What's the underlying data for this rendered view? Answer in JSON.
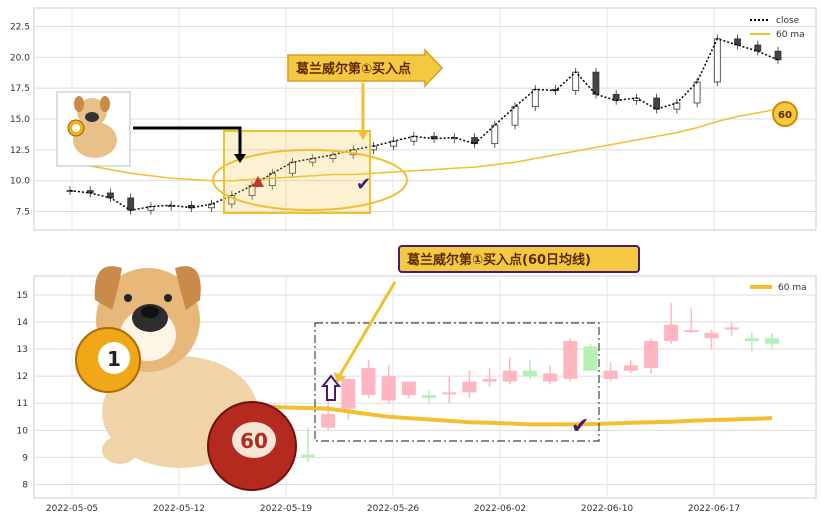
{
  "chart_data": [
    {
      "type": "candlestick",
      "panel": "top",
      "x_dates": [
        "2022-05-03",
        "2022-05-04",
        "2022-05-05",
        "2022-05-06",
        "2022-05-09",
        "2022-05-10",
        "2022-05-11",
        "2022-05-12",
        "2022-05-13",
        "2022-05-16",
        "2022-05-17",
        "2022-05-18",
        "2022-05-19",
        "2022-05-20",
        "2022-05-23",
        "2022-05-24",
        "2022-05-25",
        "2022-05-26",
        "2022-05-27",
        "2022-05-30",
        "2022-05-31",
        "2022-06-01",
        "2022-06-02",
        "2022-06-06",
        "2022-06-07",
        "2022-06-08",
        "2022-06-09",
        "2022-06-10",
        "2022-06-13",
        "2022-06-14",
        "2022-06-15",
        "2022-06-16",
        "2022-06-17",
        "2022-06-20",
        "2022-06-21",
        "2022-06-22"
      ],
      "close": [
        9.2,
        9.0,
        8.6,
        7.6,
        7.9,
        8.0,
        7.8,
        8.1,
        8.8,
        9.6,
        10.6,
        11.5,
        11.8,
        12.1,
        12.5,
        12.8,
        13.2,
        13.6,
        13.4,
        13.5,
        13.0,
        14.5,
        16.0,
        17.4,
        17.3,
        18.8,
        17.0,
        16.5,
        16.7,
        15.8,
        16.3,
        18.0,
        21.5,
        21.0,
        20.5,
        19.8
      ],
      "ma60": [
        11.5,
        11.2,
        10.9,
        10.6,
        10.4,
        10.2,
        10.1,
        10.0,
        10.0,
        10.1,
        10.2,
        10.3,
        10.4,
        10.5,
        10.5,
        10.6,
        10.7,
        10.8,
        10.9,
        11.0,
        11.1,
        11.3,
        11.5,
        11.8,
        12.1,
        12.4,
        12.7,
        13.0,
        13.3,
        13.6,
        13.9,
        14.3,
        14.8,
        15.2,
        15.5,
        15.8
      ],
      "yticks": [
        7.5,
        10.0,
        12.5,
        15.0,
        17.5,
        20.0,
        22.5
      ],
      "ylim": [
        6.0,
        24.0
      ],
      "legend": [
        "close",
        "60 ma"
      ],
      "ma_last_label": "60",
      "annotation": "葛兰威尔第①买入点"
    },
    {
      "type": "candlestick",
      "panel": "bottom",
      "x_dates": [
        "2022-05-19",
        "2022-05-20",
        "2022-05-23",
        "2022-05-24",
        "2022-05-25",
        "2022-05-26",
        "2022-05-27",
        "2022-05-30",
        "2022-05-31",
        "2022-06-01",
        "2022-06-02",
        "2022-06-06",
        "2022-06-07",
        "2022-06-08",
        "2022-06-09",
        "2022-06-10",
        "2022-06-13",
        "2022-06-14",
        "2022-06-15",
        "2022-06-16",
        "2022-06-17",
        "2022-06-20",
        "2022-06-21",
        "2022-06-22"
      ],
      "ohlc": [
        [
          9.1,
          10.1,
          8.8,
          9.0
        ],
        [
          10.1,
          11.6,
          10.0,
          10.6
        ],
        [
          10.8,
          11.9,
          10.4,
          11.9
        ],
        [
          11.3,
          12.6,
          11.2,
          12.3
        ],
        [
          11.1,
          12.4,
          11.0,
          12.0
        ],
        [
          11.3,
          11.8,
          11.2,
          11.8
        ],
        [
          11.3,
          11.5,
          11.0,
          11.2
        ],
        [
          11.4,
          12.0,
          11.0,
          11.4
        ],
        [
          11.4,
          12.2,
          11.2,
          11.8
        ],
        [
          11.8,
          12.3,
          11.6,
          11.9
        ],
        [
          11.8,
          12.7,
          11.7,
          12.2
        ],
        [
          12.2,
          12.6,
          11.9,
          12.0
        ],
        [
          11.8,
          12.4,
          11.7,
          12.1
        ],
        [
          11.9,
          13.4,
          11.8,
          13.3
        ],
        [
          13.1,
          13.2,
          12.2,
          12.2
        ],
        [
          11.9,
          12.5,
          11.8,
          12.2
        ],
        [
          12.2,
          12.6,
          12.1,
          12.4
        ],
        [
          12.3,
          13.4,
          12.1,
          13.3
        ],
        [
          13.3,
          14.7,
          13.2,
          13.9
        ],
        [
          13.7,
          14.5,
          13.6,
          13.7
        ],
        [
          13.4,
          13.7,
          13.0,
          13.6
        ],
        [
          13.8,
          14.0,
          13.5,
          13.8
        ],
        [
          13.4,
          13.6,
          12.9,
          13.3
        ],
        [
          13.4,
          13.6,
          13.0,
          13.2
        ]
      ],
      "ma60": [
        10.9,
        10.8,
        10.7,
        10.6,
        10.5,
        10.45,
        10.4,
        10.35,
        10.3,
        10.28,
        10.25,
        10.22,
        10.22,
        10.22,
        10.23,
        10.25,
        10.28,
        10.3,
        10.32,
        10.35,
        10.38,
        10.4,
        10.42,
        10.45
      ],
      "yticks": [
        8,
        9,
        10,
        11,
        12,
        13,
        14,
        15
      ],
      "ylim": [
        7.5,
        15.7
      ],
      "xticks": [
        "2022-05-05",
        "2022-05-12",
        "2022-05-19",
        "2022-05-26",
        "2022-06-02",
        "2022-06-10",
        "2022-06-17"
      ],
      "legend": [
        "60 ma"
      ],
      "annotation": "葛兰威尔第①买入点(60日均线)",
      "ball1_label": "1",
      "ball2_label": "60"
    }
  ],
  "colors": {
    "up": "#ffb6c1",
    "down": "#b4f0b4",
    "ma": "#f0c030",
    "annotation_bg": "#f5c842",
    "purple": "#4b1a6e"
  }
}
